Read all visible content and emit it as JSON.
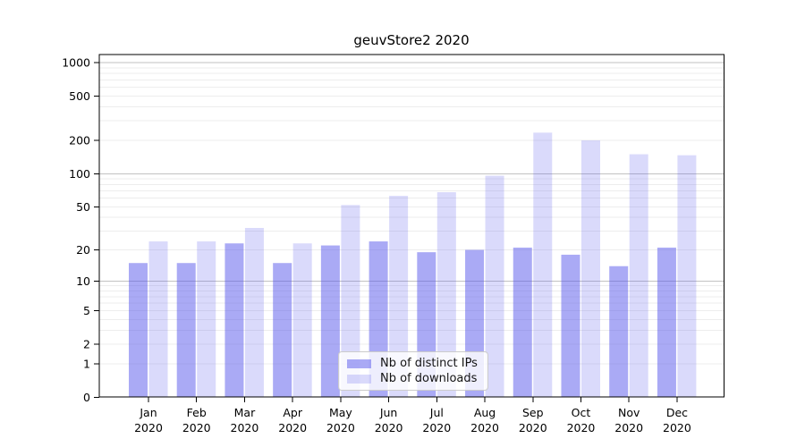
{
  "chart_data": {
    "type": "bar",
    "title": "geuvStore2 2020",
    "categories": [
      "Jan",
      "Feb",
      "Mar",
      "Apr",
      "May",
      "Jun",
      "Jul",
      "Aug",
      "Sep",
      "Oct",
      "Nov",
      "Dec"
    ],
    "category_year": "2020",
    "series": [
      {
        "name": "Nb of distinct IPs",
        "color": "rgba(85,85,235,0.50)",
        "values": [
          15,
          15,
          23,
          15,
          22,
          24,
          19,
          20,
          21,
          18,
          14,
          21
        ]
      },
      {
        "name": "Nb of downloads",
        "color": "rgba(85,85,235,0.22)",
        "values": [
          24,
          24,
          32,
          23,
          52,
          63,
          68,
          96,
          235,
          200,
          150,
          147
        ]
      }
    ],
    "xlabel": "",
    "ylabel": "",
    "yticks": [
      0,
      1,
      2,
      5,
      10,
      20,
      50,
      100,
      200,
      500,
      1000
    ],
    "ylim": [
      0,
      1180
    ],
    "yscale": "symlog (position proportional to ln(1+v))",
    "grid": "horizontal major and minor gridlines, visible through translucent bars",
    "legend_position": "inside bottom-center",
    "axis_color": "#000000",
    "major_grid_color": "rgba(0,0,0,0.24)",
    "minor_grid_color": "rgba(0,0,0,0.07)",
    "text_color": "#000000"
  }
}
